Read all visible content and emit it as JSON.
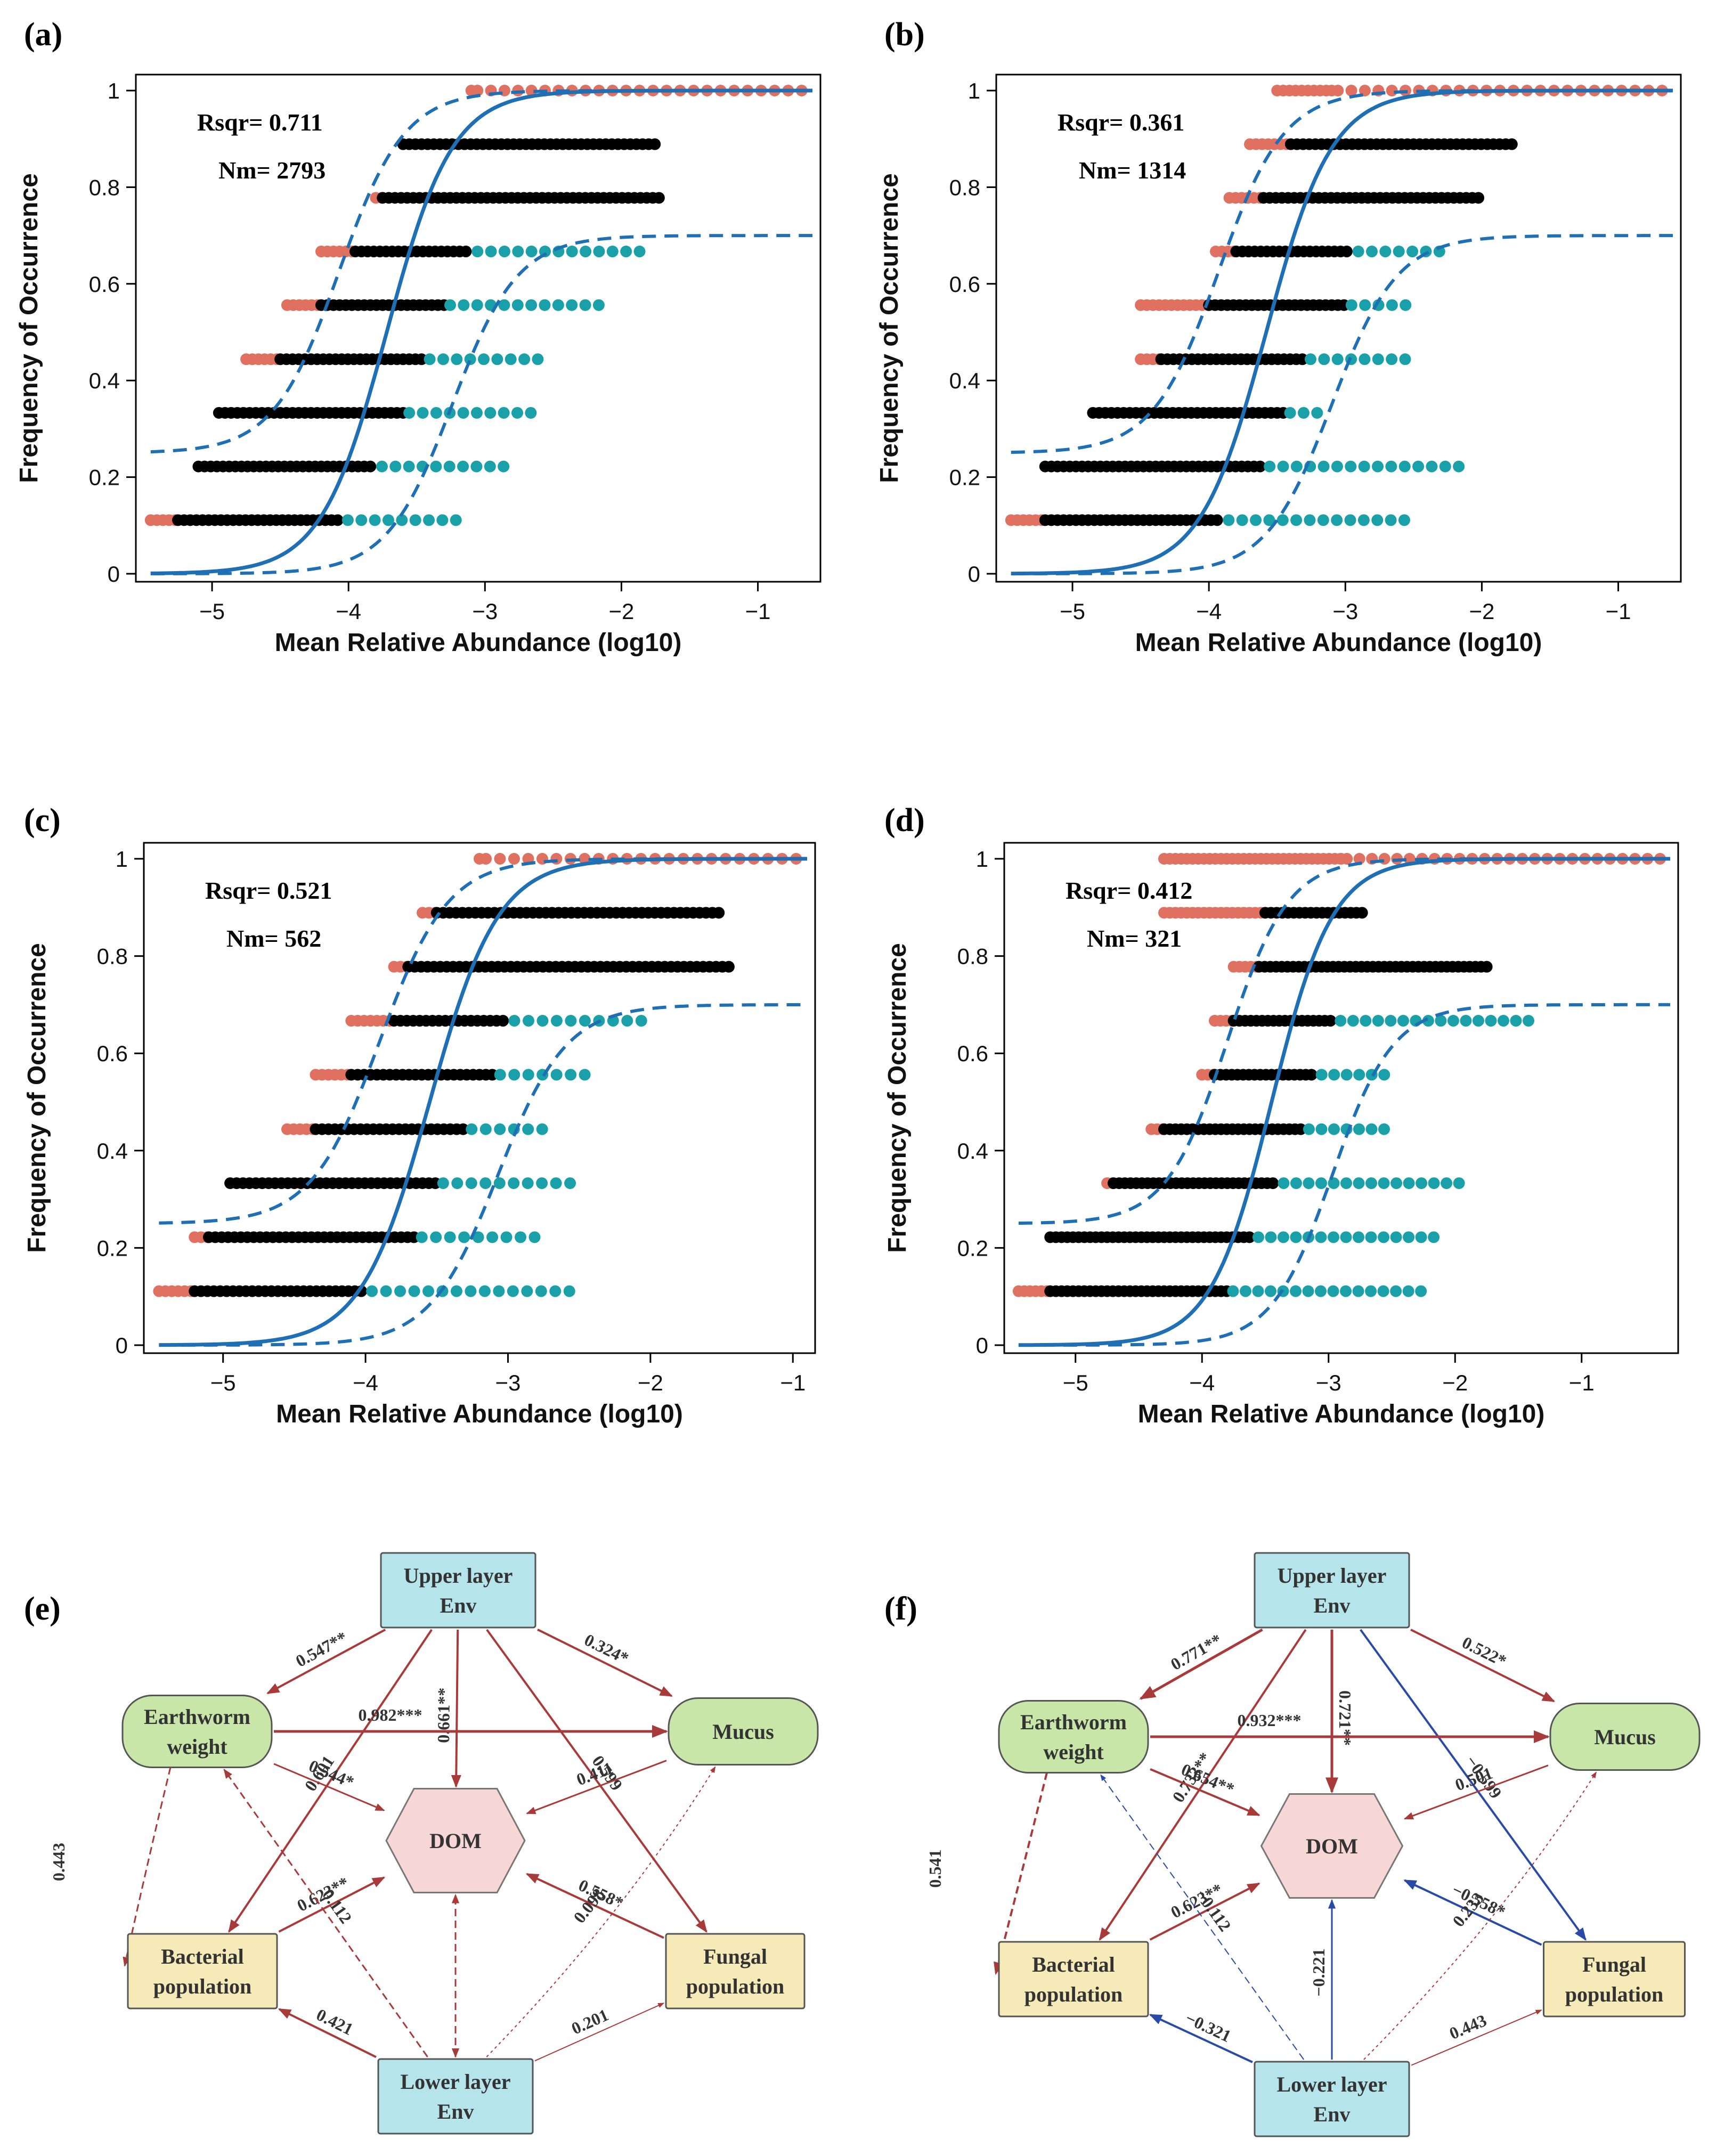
{
  "colors": {
    "above": "#e07060",
    "within": "#000000",
    "below": "#1aa0a8",
    "fit": "#1f6fb5",
    "positive_path": "#a83a3a",
    "negative_path": "#2a4aa8",
    "env_fill": "#b5e5ea",
    "bio_fill": "#c8e6a8",
    "pop_fill": "#f6ebb8",
    "dom_fill": "#f7d6d6"
  },
  "chart_data": [
    {
      "panel": "(a)",
      "type": "scatter",
      "xlabel": "Mean Relative Abundance (log10)",
      "ylabel": "Frequency of Occurrence",
      "xlim": [
        -5.5,
        -0.6
      ],
      "ylim": [
        0,
        1
      ],
      "xticks": [
        -5,
        -4,
        -3,
        -2,
        -1
      ],
      "yticks": [
        0,
        0.2,
        0.4,
        0.6,
        0.8,
        1
      ],
      "xtick_labels": [
        "−5",
        "−4",
        "−3",
        "−2",
        "−1"
      ],
      "ytick_labels": [
        "0",
        "0.2",
        "0.4",
        "0.6",
        "0.8",
        "1"
      ],
      "stats": [
        "Rsqr= 0.711",
        "Nm= 2793"
      ],
      "fit_m": -3.72,
      "fit_s": 0.24,
      "upper_shift": 0.35,
      "lower_shift": 0.48,
      "lower_plateau": 0.7,
      "levels": [
        {
          "y": 0.111,
          "above_min": -5.45,
          "within_min": -5.25,
          "within_max": -4.05,
          "below_max": -3.15
        },
        {
          "y": 0.222,
          "above_min": -5.1,
          "within_min": -5.1,
          "within_max": -3.8,
          "below_max": -2.8
        },
        {
          "y": 0.333,
          "above_min": -4.95,
          "within_min": -4.95,
          "within_max": -3.6,
          "below_max": -2.6
        },
        {
          "y": 0.444,
          "above_min": -4.75,
          "within_min": -4.5,
          "within_max": -3.45,
          "below_max": -2.55
        },
        {
          "y": 0.556,
          "above_min": -4.45,
          "within_min": -4.2,
          "within_max": -3.3,
          "below_max": -2.15
        },
        {
          "y": 0.667,
          "above_min": -4.2,
          "within_min": -3.95,
          "within_max": -3.1,
          "below_max": -1.85
        },
        {
          "y": 0.778,
          "above_min": -3.8,
          "within_min": -3.75,
          "within_max": -1.7,
          "below_max": -1.7
        },
        {
          "y": 0.889,
          "above_min": -3.6,
          "within_min": -3.6,
          "within_max": -1.75,
          "below_max": -1.75
        },
        {
          "y": 1.0,
          "above_min": -3.1,
          "within_min": -3.1,
          "within_max": -3.1,
          "below_max": -0.6
        }
      ]
    },
    {
      "panel": "(b)",
      "type": "scatter",
      "xlabel": "Mean Relative Abundance (log10)",
      "ylabel": "Frequency of Occurrence",
      "xlim": [
        -5.5,
        -0.6
      ],
      "ylim": [
        0,
        1
      ],
      "xticks": [
        -5,
        -4,
        -3,
        -2,
        -1
      ],
      "yticks": [
        0,
        0.2,
        0.4,
        0.6,
        0.8,
        1
      ],
      "xtick_labels": [
        "−5",
        "−4",
        "−3",
        "−2",
        "−1"
      ],
      "ytick_labels": [
        "0",
        "0.2",
        "0.4",
        "0.6",
        "0.8",
        "1"
      ],
      "stats": [
        "Rsqr= 0.361",
        "Nm= 1314"
      ],
      "fit_m": -3.58,
      "fit_s": 0.24,
      "upper_shift": 0.35,
      "lower_shift": 0.48,
      "lower_plateau": 0.7,
      "levels": [
        {
          "y": 0.111,
          "above_min": -5.45,
          "within_min": -5.2,
          "within_max": -3.9,
          "below_max": -2.55
        },
        {
          "y": 0.222,
          "above_min": -5.2,
          "within_min": -5.2,
          "within_max": -3.6,
          "below_max": -2.1
        },
        {
          "y": 0.333,
          "above_min": -4.85,
          "within_min": -4.85,
          "within_max": -3.45,
          "below_max": -3.2
        },
        {
          "y": 0.444,
          "above_min": -4.5,
          "within_min": -4.35,
          "within_max": -3.3,
          "below_max": -2.55
        },
        {
          "y": 0.556,
          "above_min": -4.5,
          "within_min": -4.0,
          "within_max": -3.0,
          "below_max": -2.5
        },
        {
          "y": 0.667,
          "above_min": -3.95,
          "within_min": -3.8,
          "within_max": -2.95,
          "below_max": -2.3
        },
        {
          "y": 0.778,
          "above_min": -3.85,
          "within_min": -3.6,
          "within_max": -2.0,
          "below_max": -2.0
        },
        {
          "y": 0.889,
          "above_min": -3.7,
          "within_min": -3.4,
          "within_max": -1.75,
          "below_max": -1.75
        },
        {
          "y": 1.0,
          "above_min": -3.5,
          "within_min": -3.1,
          "within_max": -3.1,
          "below_max": -0.65
        }
      ]
    },
    {
      "panel": "(c)",
      "type": "scatter",
      "xlabel": "Mean Relative Abundance (log10)",
      "ylabel": "Frequency of Occurrence",
      "xlim": [
        -5.5,
        -0.9
      ],
      "ylim": [
        0,
        1
      ],
      "xticks": [
        -5,
        -4,
        -3,
        -2,
        -1
      ],
      "yticks": [
        0,
        0.2,
        0.4,
        0.6,
        0.8,
        1
      ],
      "xtick_labels": [
        "−5",
        "−4",
        "−3",
        "−2",
        "−1"
      ],
      "ytick_labels": [
        "0",
        "0.2",
        "0.4",
        "0.6",
        "0.8",
        "1"
      ],
      "stats": [
        "Rsqr= 0.521",
        "Nm= 562"
      ],
      "fit_m": -3.55,
      "fit_s": 0.24,
      "upper_shift": 0.35,
      "lower_shift": 0.48,
      "lower_plateau": 0.7,
      "levels": [
        {
          "y": 0.111,
          "above_min": -5.45,
          "within_min": -5.2,
          "within_max": -4.0,
          "below_max": -2.55
        },
        {
          "y": 0.222,
          "above_min": -5.2,
          "within_min": -5.1,
          "within_max": -3.65,
          "below_max": -2.75
        },
        {
          "y": 0.333,
          "above_min": -4.95,
          "within_min": -4.95,
          "within_max": -3.5,
          "below_max": -2.55
        },
        {
          "y": 0.444,
          "above_min": -4.55,
          "within_min": -4.35,
          "within_max": -3.3,
          "below_max": -2.7
        },
        {
          "y": 0.556,
          "above_min": -4.35,
          "within_min": -4.1,
          "within_max": -3.1,
          "below_max": -2.4
        },
        {
          "y": 0.667,
          "above_min": -4.1,
          "within_min": -3.8,
          "within_max": -3.0,
          "below_max": -2.05
        },
        {
          "y": 0.778,
          "above_min": -3.8,
          "within_min": -3.7,
          "within_max": -1.45,
          "below_max": -1.45
        },
        {
          "y": 0.889,
          "above_min": -3.6,
          "within_min": -3.5,
          "within_max": -1.5,
          "below_max": -1.5
        },
        {
          "y": 1.0,
          "above_min": -3.2,
          "within_min": -3.2,
          "within_max": -3.2,
          "below_max": -0.9
        }
      ]
    },
    {
      "panel": "(d)",
      "type": "scatter",
      "xlabel": "Mean Relative Abundance (log10)",
      "ylabel": "Frequency of Occurrence",
      "xlim": [
        -5.5,
        -0.3
      ],
      "ylim": [
        0,
        1
      ],
      "xticks": [
        -5,
        -4,
        -3,
        -2,
        -1
      ],
      "yticks": [
        0,
        0.2,
        0.4,
        0.6,
        0.8,
        1
      ],
      "xtick_labels": [
        "−5",
        "−4",
        "−3",
        "−2",
        "−1"
      ],
      "ytick_labels": [
        "0",
        "0.2",
        "0.4",
        "0.6",
        "0.8",
        "1"
      ],
      "stats": [
        "Rsqr= 0.412",
        "Nm= 321"
      ],
      "fit_m": -3.45,
      "fit_s": 0.24,
      "upper_shift": 0.35,
      "lower_shift": 0.48,
      "lower_plateau": 0.7,
      "levels": [
        {
          "y": 0.111,
          "above_min": -5.45,
          "within_min": -5.2,
          "within_max": -3.8,
          "below_max": -2.25
        },
        {
          "y": 0.222,
          "above_min": -5.2,
          "within_min": -5.2,
          "within_max": -3.6,
          "below_max": -2.1
        },
        {
          "y": 0.333,
          "above_min": -4.75,
          "within_min": -4.7,
          "within_max": -3.4,
          "below_max": -1.9
        },
        {
          "y": 0.444,
          "above_min": -4.4,
          "within_min": -4.3,
          "within_max": -3.2,
          "below_max": -2.55
        },
        {
          "y": 0.556,
          "above_min": -4.0,
          "within_min": -3.9,
          "within_max": -3.1,
          "below_max": -2.55
        },
        {
          "y": 0.667,
          "above_min": -3.9,
          "within_min": -3.75,
          "within_max": -2.95,
          "below_max": -1.35
        },
        {
          "y": 0.778,
          "above_min": -3.75,
          "within_min": -3.55,
          "within_max": -1.75,
          "below_max": -1.75
        },
        {
          "y": 0.889,
          "above_min": -4.3,
          "within_min": -3.5,
          "within_max": -2.7,
          "below_max": -2.7
        },
        {
          "y": 1.0,
          "above_min": -4.3,
          "within_min": -2.9,
          "within_max": -2.9,
          "below_max": -0.35
        }
      ]
    }
  ],
  "path_diagrams": [
    {
      "panel": "(e)",
      "nodes": {
        "upper": [
          "Upper layer",
          "Env"
        ],
        "earthworm": [
          "Earthworm",
          "weight"
        ],
        "mucus": [
          "Mucus"
        ],
        "dom": [
          "DOM"
        ],
        "bacterial": [
          "Bacterial",
          "population"
        ],
        "fungal": [
          "Fungal",
          "population"
        ],
        "lower": [
          "Lower layer",
          "Env"
        ]
      },
      "edges": [
        {
          "from": "upper",
          "to": "earthworm",
          "label": "0.547**",
          "sign": "positive",
          "style": "solid",
          "weight": 4
        },
        {
          "from": "upper",
          "to": "mucus",
          "label": "0.324*",
          "sign": "positive",
          "style": "solid",
          "weight": 4
        },
        {
          "from": "upper",
          "to": "bacterial",
          "label": "0.601",
          "sign": "positive",
          "style": "solid",
          "weight": 4
        },
        {
          "from": "upper",
          "to": "dom",
          "label": "0.661**",
          "sign": "positive",
          "style": "solid",
          "weight": 4
        },
        {
          "from": "upper",
          "to": "fungal",
          "label": "0.599",
          "sign": "positive",
          "style": "solid",
          "weight": 4
        },
        {
          "from": "earthworm",
          "to": "mucus",
          "label": "0.982***",
          "sign": "positive",
          "style": "solid",
          "weight": 5
        },
        {
          "from": "earthworm",
          "to": "dom",
          "label": "0.544*",
          "sign": "positive",
          "style": "solid",
          "weight": 3
        },
        {
          "from": "mucus",
          "to": "dom",
          "label": "0.411",
          "sign": "positive",
          "style": "solid",
          "weight": 3
        },
        {
          "from": "bacterial",
          "to": "dom",
          "label": "0.623**",
          "sign": "positive",
          "style": "solid",
          "weight": 4
        },
        {
          "from": "fungal",
          "to": "dom",
          "label": "0.558*",
          "sign": "positive",
          "style": "solid",
          "weight": 4
        },
        {
          "from": "earthworm",
          "to": "bacterial",
          "label": "0.443",
          "sign": "positive",
          "style": "dashed",
          "weight": 3
        },
        {
          "from": "lower",
          "to": "earthworm",
          "label": "0.112",
          "sign": "positive",
          "style": "dashed",
          "weight": 3
        },
        {
          "from": "lower",
          "to": "mucus",
          "label": "0.098",
          "sign": "positive",
          "style": "dotted",
          "weight": 2
        },
        {
          "from": "lower",
          "to": "dom",
          "label": "",
          "sign": "positive",
          "style": "dashed",
          "weight": 3
        },
        {
          "from": "lower",
          "to": "bacterial",
          "label": "0.421",
          "sign": "positive",
          "style": "solid",
          "weight": 4
        },
        {
          "from": "lower",
          "to": "fungal",
          "label": "0.201",
          "sign": "positive",
          "style": "solid",
          "weight": 2
        }
      ]
    },
    {
      "panel": "(f)",
      "nodes": {
        "upper": [
          "Upper layer",
          "Env"
        ],
        "earthworm": [
          "Earthworm",
          "weight"
        ],
        "mucus": [
          "Mucus"
        ],
        "dom": [
          "DOM"
        ],
        "bacterial": [
          "Bacterial",
          "population"
        ],
        "fungal": [
          "Fungal",
          "population"
        ],
        "lower": [
          "Lower layer",
          "Env"
        ]
      },
      "edges": [
        {
          "from": "upper",
          "to": "earthworm",
          "label": "0.771**",
          "sign": "positive",
          "style": "solid",
          "weight": 5
        },
        {
          "from": "upper",
          "to": "mucus",
          "label": "0.522*",
          "sign": "positive",
          "style": "solid",
          "weight": 4
        },
        {
          "from": "upper",
          "to": "bacterial",
          "label": "0.733**",
          "sign": "positive",
          "style": "solid",
          "weight": 4
        },
        {
          "from": "upper",
          "to": "dom",
          "label": "0.721**",
          "sign": "positive",
          "style": "solid",
          "weight": 5
        },
        {
          "from": "upper",
          "to": "fungal",
          "label": "−0.599",
          "sign": "negative",
          "style": "solid",
          "weight": 4
        },
        {
          "from": "earthworm",
          "to": "mucus",
          "label": "0.932***",
          "sign": "positive",
          "style": "solid",
          "weight": 5
        },
        {
          "from": "earthworm",
          "to": "dom",
          "label": "0.654**",
          "sign": "positive",
          "style": "solid",
          "weight": 4
        },
        {
          "from": "mucus",
          "to": "dom",
          "label": "0.501",
          "sign": "positive",
          "style": "solid",
          "weight": 3
        },
        {
          "from": "bacterial",
          "to": "dom",
          "label": "0.623**",
          "sign": "positive",
          "style": "solid",
          "weight": 4
        },
        {
          "from": "fungal",
          "to": "dom",
          "label": "−0.558*",
          "sign": "negative",
          "style": "solid",
          "weight": 4
        },
        {
          "from": "earthworm",
          "to": "bacterial",
          "label": "0.541",
          "sign": "positive",
          "style": "dashed",
          "weight": 4
        },
        {
          "from": "lower",
          "to": "earthworm",
          "label": "−0.112",
          "sign": "negative",
          "style": "dashed",
          "weight": 2
        },
        {
          "from": "lower",
          "to": "mucus",
          "label": "0.233",
          "sign": "positive",
          "style": "dotted",
          "weight": 2
        },
        {
          "from": "lower",
          "to": "dom",
          "label": "−0.221",
          "sign": "negative",
          "style": "solid",
          "weight": 3
        },
        {
          "from": "lower",
          "to": "bacterial",
          "label": "−0.321",
          "sign": "negative",
          "style": "solid",
          "weight": 4
        },
        {
          "from": "lower",
          "to": "fungal",
          "label": "0.443",
          "sign": "positive",
          "style": "solid",
          "weight": 2
        }
      ]
    }
  ]
}
